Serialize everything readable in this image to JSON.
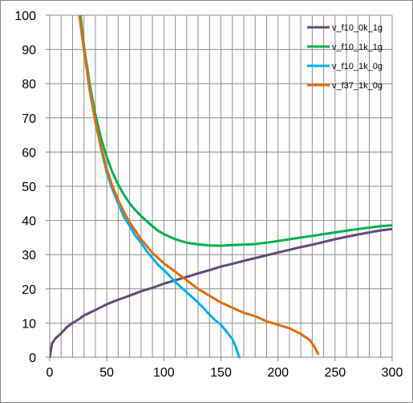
{
  "chart_data": {
    "type": "line",
    "title": "",
    "xlabel": "",
    "ylabel": "",
    "xlim": [
      0,
      300
    ],
    "ylim": [
      0,
      100
    ],
    "x_ticks": [
      0,
      50,
      100,
      150,
      200,
      250,
      300
    ],
    "y_ticks": [
      0,
      10,
      20,
      30,
      40,
      50,
      60,
      70,
      80,
      90,
      100
    ],
    "x_tick_labels": [
      "0",
      "50",
      "100",
      "150",
      "200",
      "250",
      "300"
    ],
    "y_tick_labels": [
      "0",
      "10",
      "20",
      "30",
      "40",
      "50",
      "60",
      "70",
      "80",
      "90",
      "100"
    ],
    "grid": "on",
    "legend_position": "top-right",
    "series": [
      {
        "name": "v_f10_0k_1g",
        "color": "#604a7b",
        "points": [
          [
            0,
            0
          ],
          [
            1,
            2
          ],
          [
            2,
            4
          ],
          [
            5,
            5.5
          ],
          [
            10,
            7
          ],
          [
            15,
            8.8
          ],
          [
            20,
            10
          ],
          [
            25,
            11
          ],
          [
            30,
            12.2
          ],
          [
            40,
            13.8
          ],
          [
            50,
            15.5
          ],
          [
            60,
            16.8
          ],
          [
            70,
            18
          ],
          [
            80,
            19.3
          ],
          [
            90,
            20.3
          ],
          [
            100,
            21.5
          ],
          [
            110,
            22.5
          ],
          [
            120,
            23.5
          ],
          [
            130,
            24.5
          ],
          [
            140,
            25.5
          ],
          [
            150,
            26.5
          ],
          [
            160,
            27.3
          ],
          [
            170,
            28.2
          ],
          [
            180,
            29
          ],
          [
            190,
            29.8
          ],
          [
            200,
            30.6
          ],
          [
            210,
            31.4
          ],
          [
            220,
            32.2
          ],
          [
            230,
            32.9
          ],
          [
            240,
            33.7
          ],
          [
            250,
            34.5
          ],
          [
            260,
            35.2
          ],
          [
            270,
            35.9
          ],
          [
            280,
            36.5
          ],
          [
            290,
            37.1
          ],
          [
            300,
            37.5
          ]
        ]
      },
      {
        "name": "v_f10_1k_1g",
        "color": "#00b050",
        "points": [
          [
            27,
            100
          ],
          [
            30,
            91
          ],
          [
            35,
            80
          ],
          [
            40,
            71
          ],
          [
            45,
            64
          ],
          [
            50,
            58.5
          ],
          [
            55,
            54
          ],
          [
            60,
            50.5
          ],
          [
            65,
            47.5
          ],
          [
            70,
            45
          ],
          [
            75,
            43
          ],
          [
            80,
            41.3
          ],
          [
            85,
            39.8
          ],
          [
            90,
            38.3
          ],
          [
            95,
            37
          ],
          [
            100,
            36
          ],
          [
            110,
            34.5
          ],
          [
            120,
            33.5
          ],
          [
            130,
            33
          ],
          [
            140,
            32.7
          ],
          [
            150,
            32.6
          ],
          [
            160,
            32.8
          ],
          [
            170,
            32.9
          ],
          [
            180,
            33.1
          ],
          [
            190,
            33.5
          ],
          [
            200,
            34
          ],
          [
            210,
            34.5
          ],
          [
            220,
            35
          ],
          [
            230,
            35.5
          ],
          [
            240,
            36
          ],
          [
            250,
            36.5
          ],
          [
            260,
            37
          ],
          [
            270,
            37.5
          ],
          [
            280,
            37.9
          ],
          [
            290,
            38.3
          ],
          [
            300,
            38.6
          ]
        ]
      },
      {
        "name": "v_f10_1k_0g",
        "color": "#00b0f0",
        "points": [
          [
            26,
            100
          ],
          [
            30,
            90
          ],
          [
            35,
            78
          ],
          [
            40,
            69
          ],
          [
            45,
            61
          ],
          [
            50,
            54
          ],
          [
            55,
            49
          ],
          [
            60,
            45
          ],
          [
            65,
            41
          ],
          [
            70,
            38.5
          ],
          [
            75,
            35.5
          ],
          [
            80,
            33.5
          ],
          [
            85,
            31
          ],
          [
            90,
            29
          ],
          [
            95,
            27
          ],
          [
            100,
            25.5
          ],
          [
            105,
            23.8
          ],
          [
            110,
            22
          ],
          [
            115,
            20.5
          ],
          [
            120,
            19
          ],
          [
            125,
            17.5
          ],
          [
            130,
            16
          ],
          [
            135,
            14.3
          ],
          [
            140,
            12.5
          ],
          [
            145,
            10.8
          ],
          [
            150,
            9.5
          ],
          [
            155,
            7.5
          ],
          [
            160,
            5.3
          ],
          [
            163,
            3
          ],
          [
            166,
            0
          ]
        ]
      },
      {
        "name": "v_f37_1k_0g",
        "color": "#e46c0a",
        "points": [
          [
            26,
            100
          ],
          [
            30,
            90
          ],
          [
            35,
            78.5
          ],
          [
            40,
            69
          ],
          [
            45,
            61.5
          ],
          [
            50,
            55
          ],
          [
            55,
            50
          ],
          [
            60,
            46
          ],
          [
            65,
            42.5
          ],
          [
            70,
            39.5
          ],
          [
            75,
            37
          ],
          [
            80,
            34.5
          ],
          [
            85,
            32.5
          ],
          [
            90,
            30.5
          ],
          [
            95,
            29
          ],
          [
            100,
            27.5
          ],
          [
            110,
            25
          ],
          [
            120,
            22.5
          ],
          [
            130,
            20
          ],
          [
            140,
            18
          ],
          [
            150,
            16
          ],
          [
            160,
            14.5
          ],
          [
            170,
            13
          ],
          [
            180,
            12
          ],
          [
            190,
            10.5
          ],
          [
            200,
            9.5
          ],
          [
            210,
            8.5
          ],
          [
            220,
            6.8
          ],
          [
            228,
            5
          ],
          [
            232,
            3
          ],
          [
            235,
            1
          ]
        ]
      }
    ]
  }
}
